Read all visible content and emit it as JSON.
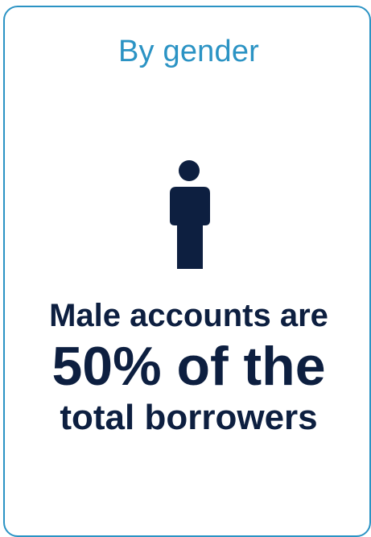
{
  "card": {
    "heading": "By gender",
    "icon": "person-icon",
    "stat_lines": [
      "Male accounts are",
      "50% of the",
      "total borrowers"
    ],
    "colors": {
      "accent": "#2b93c4",
      "text": "#0d1f40"
    }
  }
}
